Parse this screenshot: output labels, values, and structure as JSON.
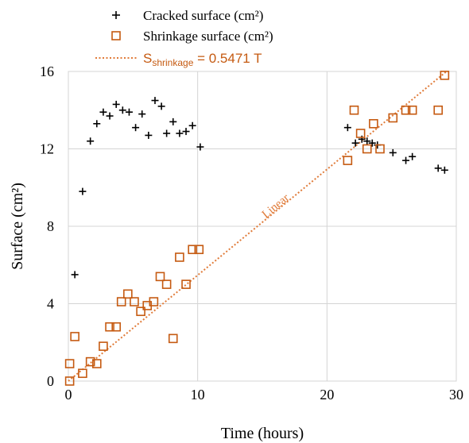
{
  "chart_data": {
    "type": "scatter",
    "xlabel": "Time (hours)",
    "ylabel": "Surface (cm²)",
    "xlim": [
      0,
      30
    ],
    "ylim": [
      0,
      16
    ],
    "xticks": [
      0,
      10,
      20,
      30
    ],
    "yticks": [
      0,
      4,
      8,
      12,
      16
    ],
    "grid": true,
    "legend_position": "top-left (above plot)",
    "series": [
      {
        "name": "Cracked surface (cm²)",
        "marker": "plus",
        "color": "#000000",
        "points": [
          [
            0.5,
            5.5
          ],
          [
            1.1,
            9.8
          ],
          [
            1.7,
            12.4
          ],
          [
            2.2,
            13.3
          ],
          [
            2.7,
            13.9
          ],
          [
            3.2,
            13.7
          ],
          [
            3.7,
            14.3
          ],
          [
            4.2,
            14.0
          ],
          [
            4.7,
            13.9
          ],
          [
            5.2,
            13.1
          ],
          [
            5.7,
            13.8
          ],
          [
            6.2,
            12.7
          ],
          [
            6.7,
            14.5
          ],
          [
            7.2,
            14.2
          ],
          [
            7.6,
            12.8
          ],
          [
            8.1,
            13.4
          ],
          [
            8.6,
            12.8
          ],
          [
            9.1,
            12.9
          ],
          [
            9.6,
            13.2
          ],
          [
            10.2,
            12.1
          ],
          [
            21.6,
            13.1
          ],
          [
            22.2,
            12.3
          ],
          [
            22.7,
            12.5
          ],
          [
            23.1,
            12.4
          ],
          [
            23.5,
            12.3
          ],
          [
            23.9,
            12.2
          ],
          [
            25.1,
            11.8
          ],
          [
            26.1,
            11.4
          ],
          [
            26.6,
            11.6
          ],
          [
            28.6,
            11.0
          ],
          [
            29.1,
            10.9
          ]
        ]
      },
      {
        "name": "Shrinkage surface (cm²)",
        "marker": "square",
        "color": "#c55a11",
        "points": [
          [
            0.1,
            0.0
          ],
          [
            0.1,
            0.9
          ],
          [
            0.5,
            2.3
          ],
          [
            1.1,
            0.4
          ],
          [
            1.7,
            1.0
          ],
          [
            2.2,
            0.9
          ],
          [
            2.7,
            1.8
          ],
          [
            3.2,
            2.8
          ],
          [
            3.7,
            2.8
          ],
          [
            4.1,
            4.1
          ],
          [
            4.6,
            4.5
          ],
          [
            5.1,
            4.1
          ],
          [
            5.6,
            3.6
          ],
          [
            6.1,
            3.9
          ],
          [
            6.6,
            4.1
          ],
          [
            7.1,
            5.4
          ],
          [
            7.6,
            5.0
          ],
          [
            8.1,
            2.2
          ],
          [
            8.6,
            6.4
          ],
          [
            9.1,
            5.0
          ],
          [
            9.6,
            6.8
          ],
          [
            10.1,
            6.8
          ],
          [
            21.6,
            11.4
          ],
          [
            22.1,
            14.0
          ],
          [
            22.6,
            12.8
          ],
          [
            23.1,
            12.0
          ],
          [
            23.6,
            13.3
          ],
          [
            24.1,
            12.0
          ],
          [
            25.1,
            13.6
          ],
          [
            26.1,
            14.0
          ],
          [
            26.6,
            14.0
          ],
          [
            28.6,
            14.0
          ],
          [
            29.1,
            15.8
          ]
        ]
      },
      {
        "name": "S_shrinkage = 0.5471 T",
        "type": "line",
        "style": "dotted",
        "color": "#e07b39",
        "slope": 0.5471,
        "intercept": 0,
        "x_range": [
          0,
          29.2
        ]
      }
    ],
    "legend": {
      "cracked": "Cracked surface (cm²)",
      "shrinkage": "Shrinkage surface (cm²)",
      "fit_prefix": "S",
      "fit_subscript": "shrinkage",
      "fit_suffix": " = 0.5471 T"
    },
    "annotations": [
      {
        "text": "Linear",
        "x": 16.2,
        "y": 8.9,
        "rotation_follows_line": true
      }
    ]
  }
}
